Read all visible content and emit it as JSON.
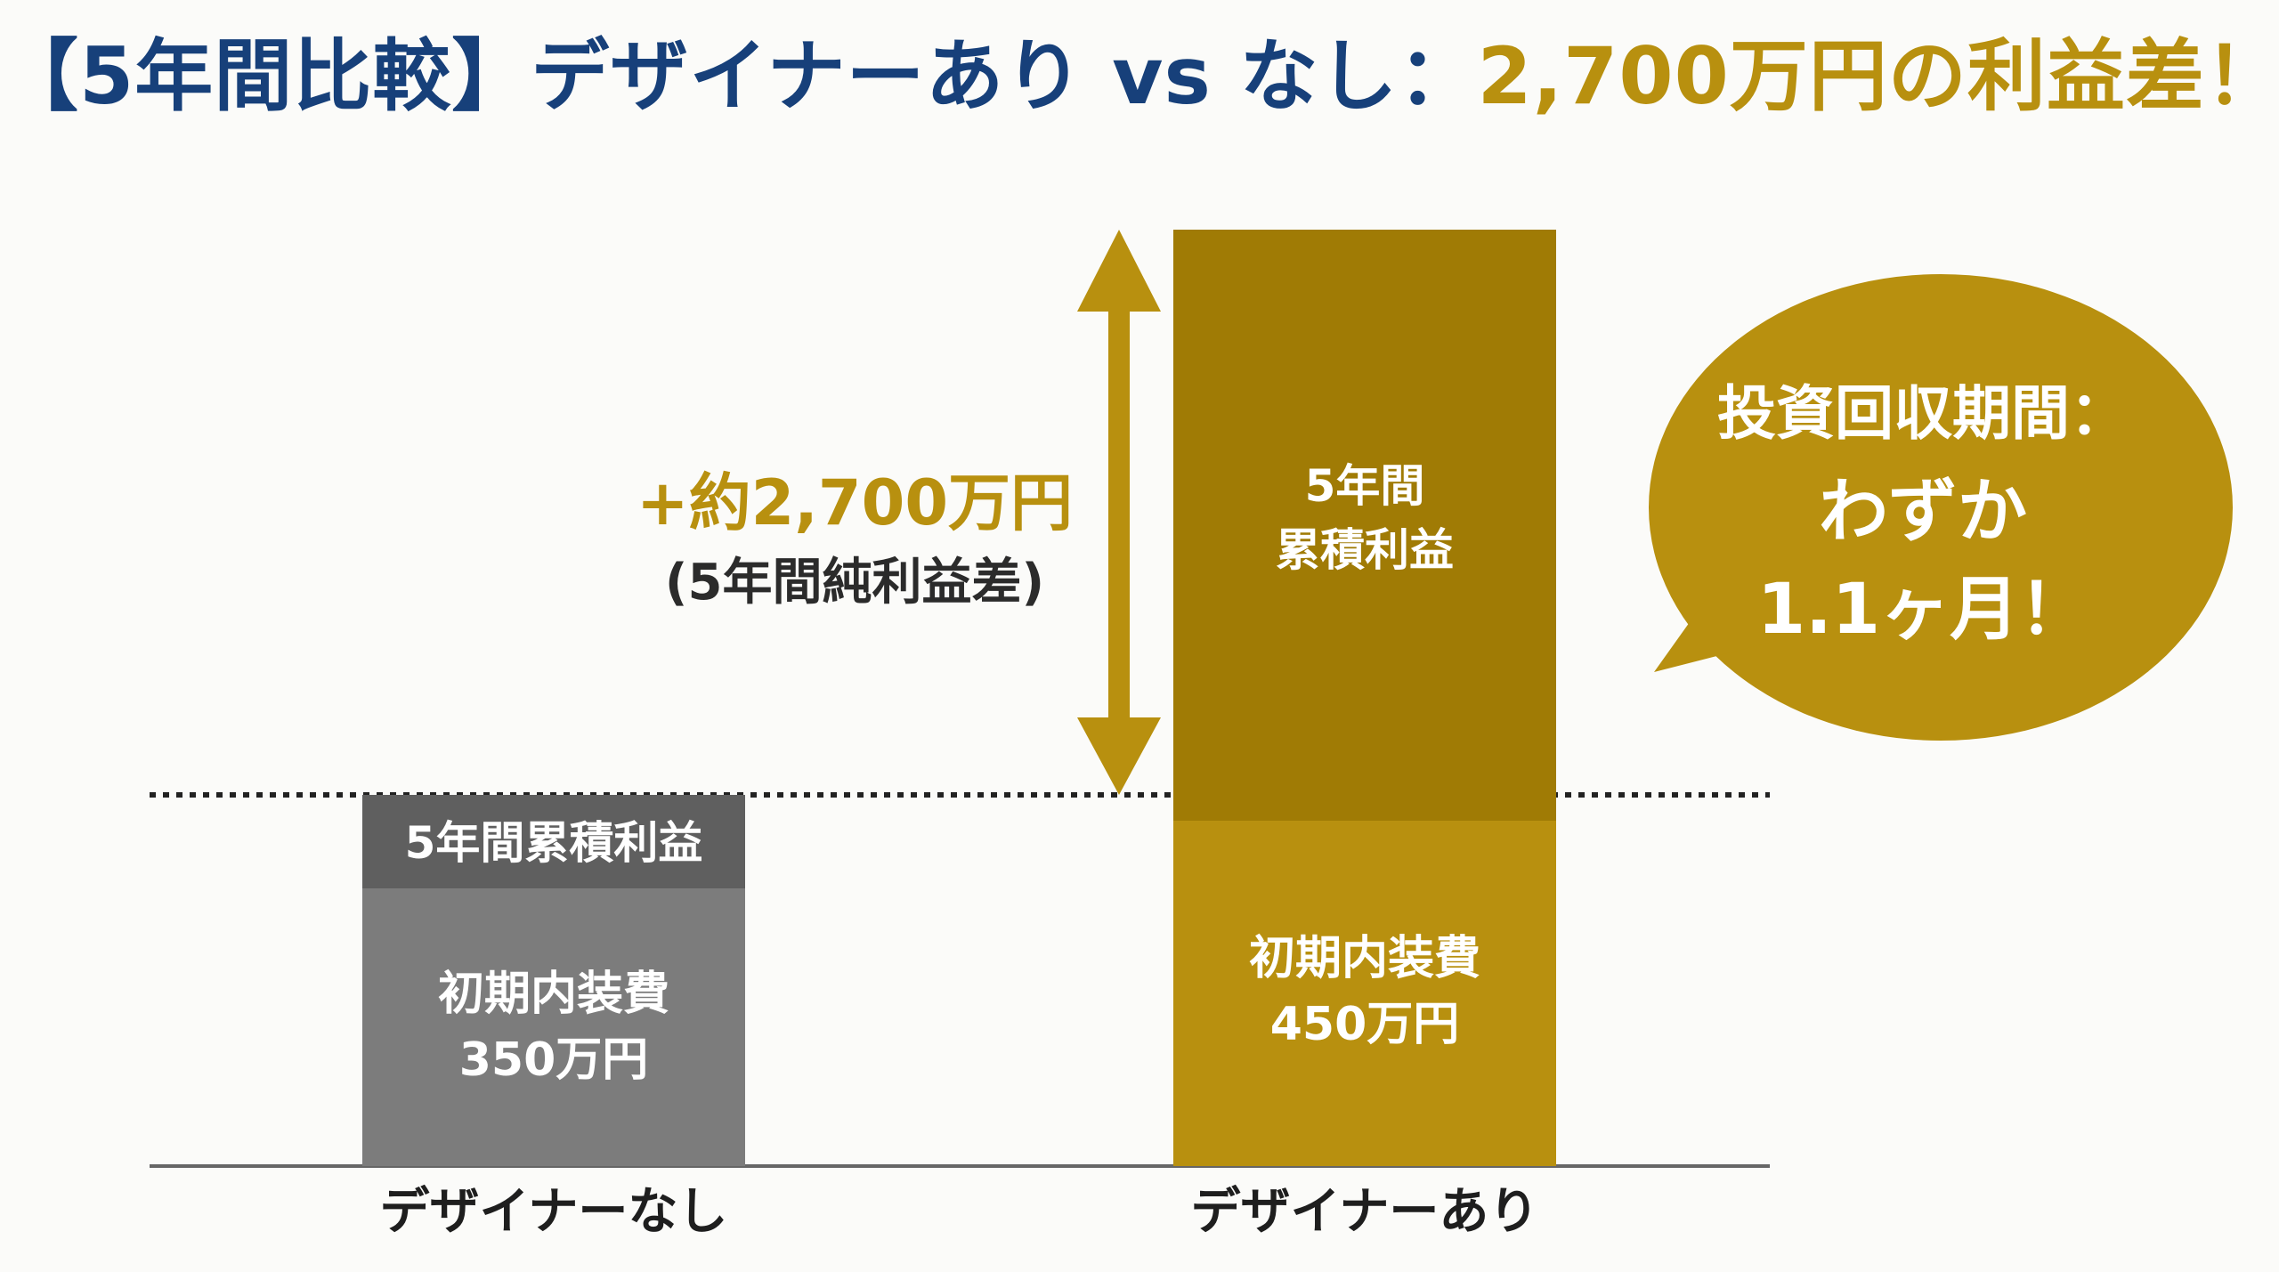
{
  "title": {
    "part1": "【5年間比較】デザイナーあり vs なし：",
    "part2": "2,700万円の利益差！"
  },
  "colors": {
    "title_blue": "#17407a",
    "gold": "#b8900f",
    "gold_dark": "#a07b05",
    "gray": "#7c7c7c",
    "gray_dark": "#5f5f5f"
  },
  "chart_data": {
    "type": "bar",
    "stacked": true,
    "categories": [
      "デザイナーなし",
      "デザイナーあり"
    ],
    "series": [
      {
        "name": "初期内装費",
        "labels": [
          "初期内装費\n350万円",
          "初期内装費\n450万円"
        ]
      },
      {
        "name": "5年間累積利益",
        "labels": [
          "5年間累積利益",
          "5年間\n累積利益"
        ]
      }
    ],
    "annotation": {
      "difference_label": "+約2,700万円",
      "difference_note": "(5年間純利益差)",
      "difference_value": 2700,
      "unit": "万円"
    },
    "grid": false,
    "legend": "none"
  },
  "callout": {
    "line1": "投資回収期間：",
    "line2": "わずか",
    "line3": "1.1ヶ月！"
  }
}
